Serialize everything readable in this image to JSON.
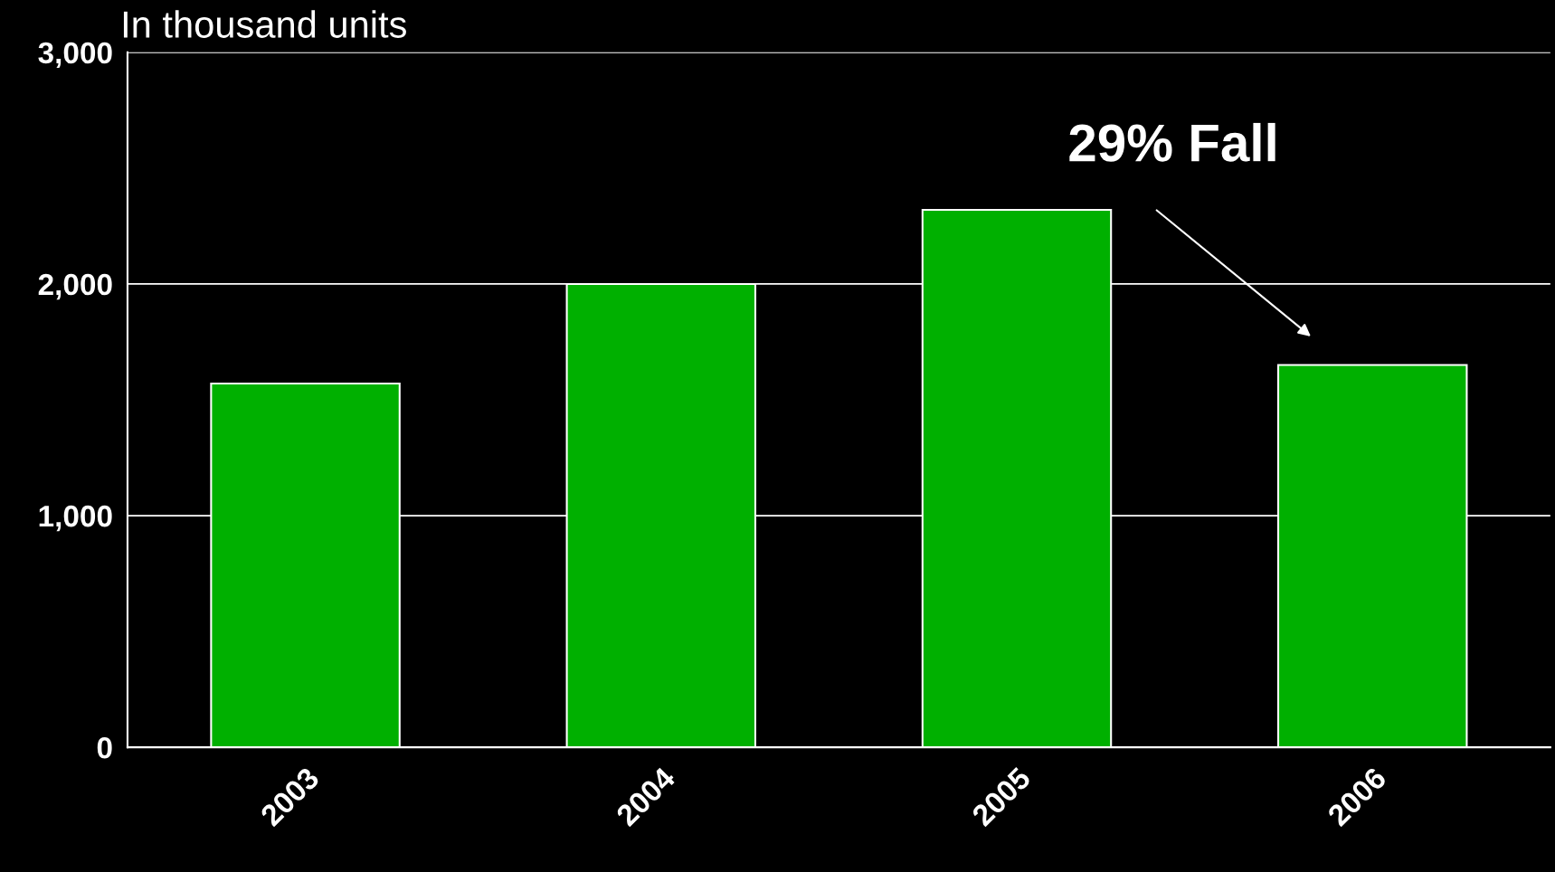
{
  "chart_data": {
    "type": "bar",
    "ylabel": "In thousand units",
    "categories": [
      "2003",
      "2004",
      "2005",
      "2006"
    ],
    "values": [
      1570,
      2000,
      2320,
      1650
    ],
    "color": "#00b000",
    "ylim": [
      0,
      3000
    ],
    "yticks": [
      {
        "value": 0,
        "label": "0"
      },
      {
        "value": 1000,
        "label": "1,000"
      },
      {
        "value": 2000,
        "label": "2,000"
      },
      {
        "value": 3000,
        "label": "3,000"
      }
    ],
    "grid": "y",
    "legend": false,
    "annotations": [
      "29% Fall"
    ]
  }
}
